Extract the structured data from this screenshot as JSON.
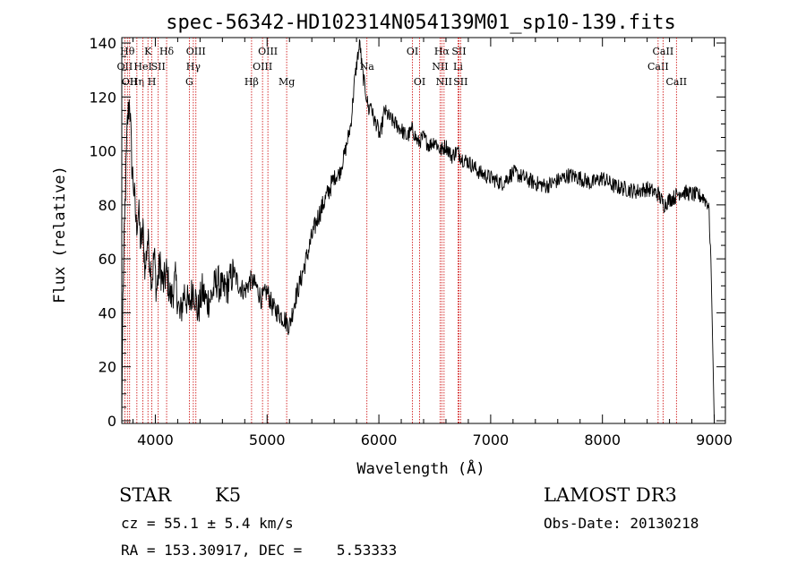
{
  "title": "spec-56342-HD102314N054139M01_sp10-139.fits",
  "chart_data": {
    "type": "line",
    "xlabel": "Wavelength (Å)",
    "ylabel": "Flux (relative)",
    "xlim": [
      3700,
      9100
    ],
    "ylim": [
      -1,
      142
    ],
    "x_ticks": [
      4000,
      5000,
      6000,
      7000,
      8000,
      9000
    ],
    "y_ticks": [
      0,
      20,
      40,
      60,
      80,
      100,
      120,
      140
    ],
    "grid": false,
    "line_color": "#000000",
    "marker_color": "#cc0000",
    "series": [
      {
        "x": [
          3700,
          3710,
          3730,
          3750,
          3770,
          3790,
          3810,
          3830,
          3850,
          3870,
          3890,
          3910,
          3930,
          3950,
          3970,
          3990,
          4010,
          4040,
          4070,
          4100,
          4140,
          4180,
          4220,
          4260,
          4300,
          4340,
          4380,
          4420,
          4460,
          4500,
          4550,
          4600,
          4650,
          4700,
          4750,
          4800,
          4850,
          4900,
          4950,
          5000,
          5050,
          5100,
          5150,
          5200,
          5250,
          5300,
          5350,
          5400,
          5450,
          5500,
          5550,
          5600,
          5650,
          5700,
          5750,
          5780,
          5810,
          5830,
          5850,
          5870,
          5890,
          5910,
          5930,
          5950,
          5980,
          6010,
          6050,
          6100,
          6150,
          6200,
          6250,
          6300,
          6350,
          6400,
          6450,
          6500,
          6550,
          6600,
          6650,
          6700,
          6750,
          6800,
          6900,
          7000,
          7100,
          7200,
          7300,
          7400,
          7500,
          7600,
          7700,
          7800,
          7900,
          8000,
          8100,
          8200,
          8300,
          8400,
          8500,
          8550,
          8600,
          8650,
          8700,
          8800,
          8900,
          8950,
          8970,
          8990,
          9000
        ],
        "y": [
          0,
          45,
          80,
          110,
          120,
          95,
          85,
          72,
          78,
          65,
          70,
          55,
          68,
          60,
          52,
          62,
          48,
          58,
          50,
          55,
          45,
          52,
          38,
          48,
          42,
          50,
          40,
          48,
          44,
          46,
          52,
          48,
          50,
          55,
          50,
          48,
          52,
          50,
          45,
          48,
          42,
          40,
          38,
          35,
          45,
          52,
          60,
          68,
          75,
          80,
          85,
          90,
          92,
          100,
          110,
          125,
          135,
          140,
          130,
          125,
          120,
          115,
          118,
          112,
          110,
          105,
          115,
          112,
          110,
          108,
          105,
          108,
          103,
          105,
          102,
          104,
          100,
          102,
          98,
          100,
          97,
          96,
          92,
          90,
          88,
          92,
          90,
          88,
          87,
          89,
          91,
          90,
          88,
          90,
          87,
          86,
          85,
          86,
          84,
          80,
          82,
          83,
          85,
          84,
          83,
          80,
          60,
          20,
          0
        ]
      }
    ],
    "markers": [
      {
        "x": 3727,
        "label": "OII",
        "row": 1
      },
      {
        "x": 3750,
        "label": "Hθ",
        "row": 0
      },
      {
        "x": 3770,
        "label": "OII",
        "row": 2
      },
      {
        "x": 3835,
        "label": "Hη",
        "row": 2
      },
      {
        "x": 3889,
        "label": "HeI",
        "row": 1
      },
      {
        "x": 3934,
        "label": "K",
        "row": 0
      },
      {
        "x": 3969,
        "label": "H",
        "row": 2
      },
      {
        "x": 4026,
        "label": "SII",
        "row": 1
      },
      {
        "x": 4101,
        "label": "Hδ",
        "row": 0
      },
      {
        "x": 4304,
        "label": "G",
        "row": 2
      },
      {
        "x": 4340,
        "label": "Hγ",
        "row": 1
      },
      {
        "x": 4363,
        "label": "OIII",
        "row": 0
      },
      {
        "x": 4861,
        "label": "Hβ",
        "row": 2
      },
      {
        "x": 4959,
        "label": "OIII",
        "row": 1
      },
      {
        "x": 5007,
        "label": "OIII",
        "row": 0
      },
      {
        "x": 5175,
        "label": "Mg",
        "row": 2
      },
      {
        "x": 5893,
        "label": "Na",
        "row": 1
      },
      {
        "x": 6300,
        "label": "OI",
        "row": 0
      },
      {
        "x": 6364,
        "label": "OI",
        "row": 2
      },
      {
        "x": 6548,
        "label": "NII",
        "row": 1
      },
      {
        "x": 6563,
        "label": "Hα",
        "row": 0
      },
      {
        "x": 6583,
        "label": "NII",
        "row": 2
      },
      {
        "x": 6708,
        "label": "Li",
        "row": 1
      },
      {
        "x": 6716,
        "label": "SII",
        "row": 0
      },
      {
        "x": 6731,
        "label": "SII",
        "row": 2
      },
      {
        "x": 8498,
        "label": "CaII",
        "row": 1
      },
      {
        "x": 8542,
        "label": "CaII",
        "row": 0
      },
      {
        "x": 8662,
        "label": "CaII",
        "row": 2
      }
    ]
  },
  "info": {
    "object_class": "STAR",
    "subclass": "K5",
    "survey": "LAMOST DR3",
    "cz": "cz = 55.1 ± 5.4 km/s",
    "obs_date": "Obs-Date: 20130218",
    "coords": "RA = 153.30917, DEC =    5.53333"
  }
}
